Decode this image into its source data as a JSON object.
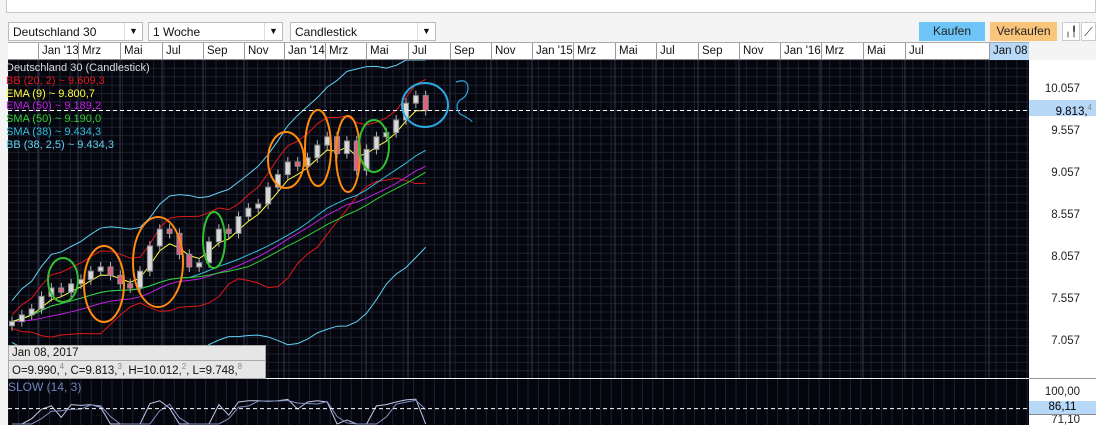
{
  "toolbar": {
    "instrument": "Deutschland 30",
    "interval": "1 Woche",
    "chart_type": "Candlestick",
    "buy": "Kaufen",
    "sell": "Verkaufen",
    "buy_color": "#6cc4f7",
    "sell_color": "#f9c57a"
  },
  "time_axis": [
    "Jan '13",
    "Mrz",
    "Mai",
    "Jul",
    "Sep",
    "Nov",
    "Jan '14",
    "Mrz",
    "Mai",
    "Jul",
    "Sep",
    "Nov",
    "Jan '15",
    "Mrz",
    "Mai",
    "Jul",
    "Sep",
    "Nov",
    "Jan '16",
    "Mrz",
    "Mai",
    "Jul",
    "Jan 08"
  ],
  "legend": {
    "title": "Deutschland 30 (Candlestick)",
    "items": [
      {
        "label": "BB (20, 2) ~ 9.609,3",
        "color": "#e01818"
      },
      {
        "label": "EMA (9) ~ 9.800,7",
        "color": "#ffff40"
      },
      {
        "label": "EMA (50) ~ 9.189,2",
        "color": "#c020e0"
      },
      {
        "label": "SMA (50) ~ 9.190,0",
        "color": "#30d030"
      },
      {
        "label": "SMA (38) ~ 9.434,3",
        "color": "#30c0e0"
      },
      {
        "label": "BB (38, 2,5) ~ 9.434,3",
        "color": "#60d0f0"
      }
    ]
  },
  "price_axis": {
    "ticks": [
      "10.057",
      "9.557",
      "9.057",
      "8.557",
      "8.057",
      "7.557",
      "7.057"
    ],
    "current": "9.813,",
    "current_sub": "4"
  },
  "tooltip": {
    "date": "Jan 08, 2017",
    "o": "O=9.990,",
    "o_sub": "4",
    "c": ", C=9.813,",
    "c_sub": "3",
    "h": ", H=10.012,",
    "h_sub": "2",
    "l": ", L=9.748,",
    "l_sub": "8"
  },
  "oscillator": {
    "label": "SLOW (14, 3)",
    "ticks": [
      "100,00",
      "86,11",
      "71,10"
    ]
  },
  "chart_data": {
    "type": "candlestick",
    "ylim": [
      6900,
      10300
    ],
    "closes": [
      7300,
      7380,
      7450,
      7600,
      7700,
      7650,
      7750,
      7800,
      7900,
      7950,
      7850,
      7750,
      7700,
      7900,
      8200,
      8400,
      8350,
      8100,
      7950,
      8000,
      8250,
      8400,
      8350,
      8550,
      8650,
      8700,
      8900,
      9050,
      9200,
      9150,
      9250,
      9400,
      9500,
      9300,
      9450,
      9100,
      9350,
      9500,
      9550,
      9700,
      9900,
      9990,
      9813
    ]
  }
}
